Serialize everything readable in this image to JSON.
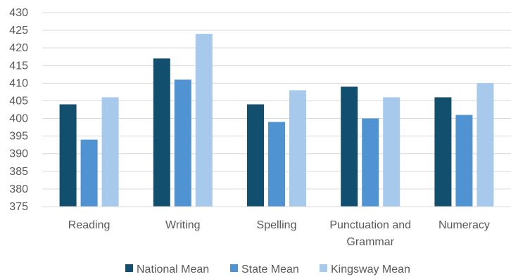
{
  "chart_data": {
    "type": "bar",
    "title": "",
    "xlabel": "",
    "ylabel": "",
    "categories": [
      "Reading",
      "Writing",
      "Spelling",
      "Punctuation and Grammar",
      "Numeracy"
    ],
    "category_lines": [
      [
        "Reading"
      ],
      [
        "Writing"
      ],
      [
        "Spelling"
      ],
      [
        "Punctuation and",
        "Grammar"
      ],
      [
        "Numeracy"
      ]
    ],
    "series": [
      {
        "name": "National Mean",
        "color": "#124e6d",
        "values": [
          404,
          417,
          404,
          409,
          406
        ]
      },
      {
        "name": "State Mean",
        "color": "#4f93d3",
        "values": [
          394,
          411,
          399,
          400,
          401
        ]
      },
      {
        "name": "Kingsway Mean",
        "color": "#a7c9ec",
        "values": [
          406,
          424,
          408,
          406,
          410
        ]
      }
    ],
    "ylim": [
      375,
      430
    ],
    "yticks": [
      375,
      380,
      385,
      390,
      395,
      400,
      405,
      410,
      415,
      420,
      425,
      430
    ],
    "grid": true,
    "legend_position": "bottom"
  }
}
